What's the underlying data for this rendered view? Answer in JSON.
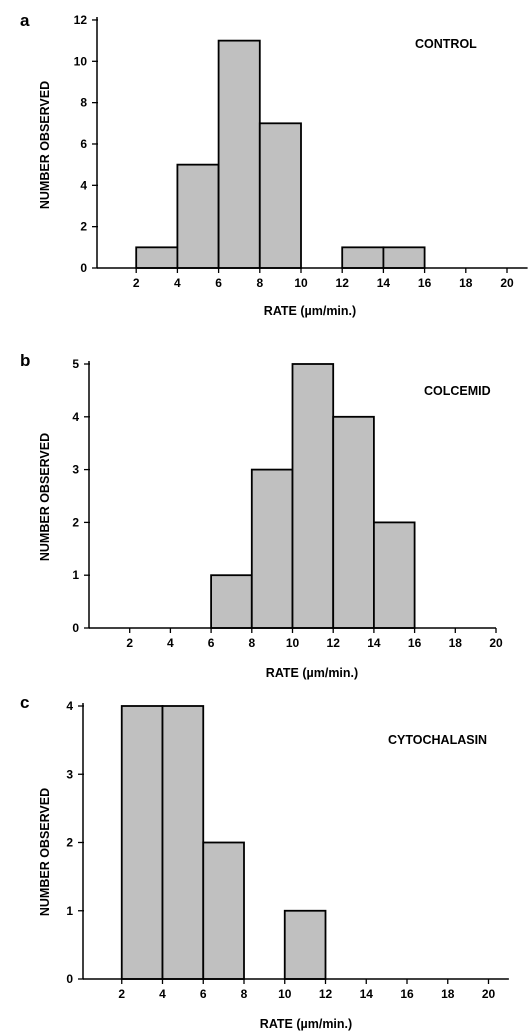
{
  "chart_data": [
    {
      "type": "bar",
      "panel_label": "a",
      "title": "CONTROL",
      "xlabel": "RATE (µm/min.)",
      "ylabel": "NUMBER OBSERVED",
      "bin_width": 2,
      "bins": [
        {
          "start": 2,
          "end": 4,
          "count": 1
        },
        {
          "start": 4,
          "end": 6,
          "count": 5
        },
        {
          "start": 6,
          "end": 8,
          "count": 11
        },
        {
          "start": 8,
          "end": 10,
          "count": 7
        },
        {
          "start": 12,
          "end": 14,
          "count": 1
        },
        {
          "start": 14,
          "end": 16,
          "count": 1
        }
      ],
      "xlim": [
        0,
        21
      ],
      "ylim": [
        0,
        12
      ],
      "xticks": [
        2,
        4,
        6,
        8,
        10,
        12,
        14,
        16,
        18,
        20
      ],
      "yticks": [
        0,
        2,
        4,
        6,
        8,
        10,
        12
      ],
      "bar_color": "#c0c0c0",
      "grid": false,
      "legend": false
    },
    {
      "type": "bar",
      "panel_label": "b",
      "title": "COLCEMID",
      "xlabel": "RATE (µm/min.)",
      "ylabel": "NUMBER OBSERVED",
      "bin_width": 2,
      "bins": [
        {
          "start": 6,
          "end": 8,
          "count": 1
        },
        {
          "start": 8,
          "end": 10,
          "count": 3
        },
        {
          "start": 10,
          "end": 12,
          "count": 5
        },
        {
          "start": 12,
          "end": 14,
          "count": 4
        },
        {
          "start": 14,
          "end": 16,
          "count": 2
        }
      ],
      "xlim": [
        0,
        20
      ],
      "ylim": [
        0,
        5
      ],
      "xticks": [
        2,
        4,
        6,
        8,
        10,
        12,
        14,
        16,
        18,
        20
      ],
      "yticks": [
        0,
        1,
        2,
        3,
        4,
        5
      ],
      "bar_color": "#c0c0c0",
      "grid": false,
      "legend": false
    },
    {
      "type": "bar",
      "panel_label": "c",
      "title": "CYTOCHALASIN",
      "xlabel": "RATE (µm/min.)",
      "ylabel": "NUMBER OBSERVED",
      "bin_width": 2,
      "bins": [
        {
          "start": 2,
          "end": 4,
          "count": 4
        },
        {
          "start": 4,
          "end": 6,
          "count": 4
        },
        {
          "start": 6,
          "end": 8,
          "count": 2
        },
        {
          "start": 10,
          "end": 12,
          "count": 1
        }
      ],
      "xlim": [
        0,
        21
      ],
      "ylim": [
        0,
        4
      ],
      "xticks": [
        2,
        4,
        6,
        8,
        10,
        12,
        14,
        16,
        18,
        20
      ],
      "yticks": [
        0,
        1,
        2,
        3,
        4
      ],
      "bar_color": "#c0c0c0",
      "grid": false,
      "legend": false
    }
  ]
}
